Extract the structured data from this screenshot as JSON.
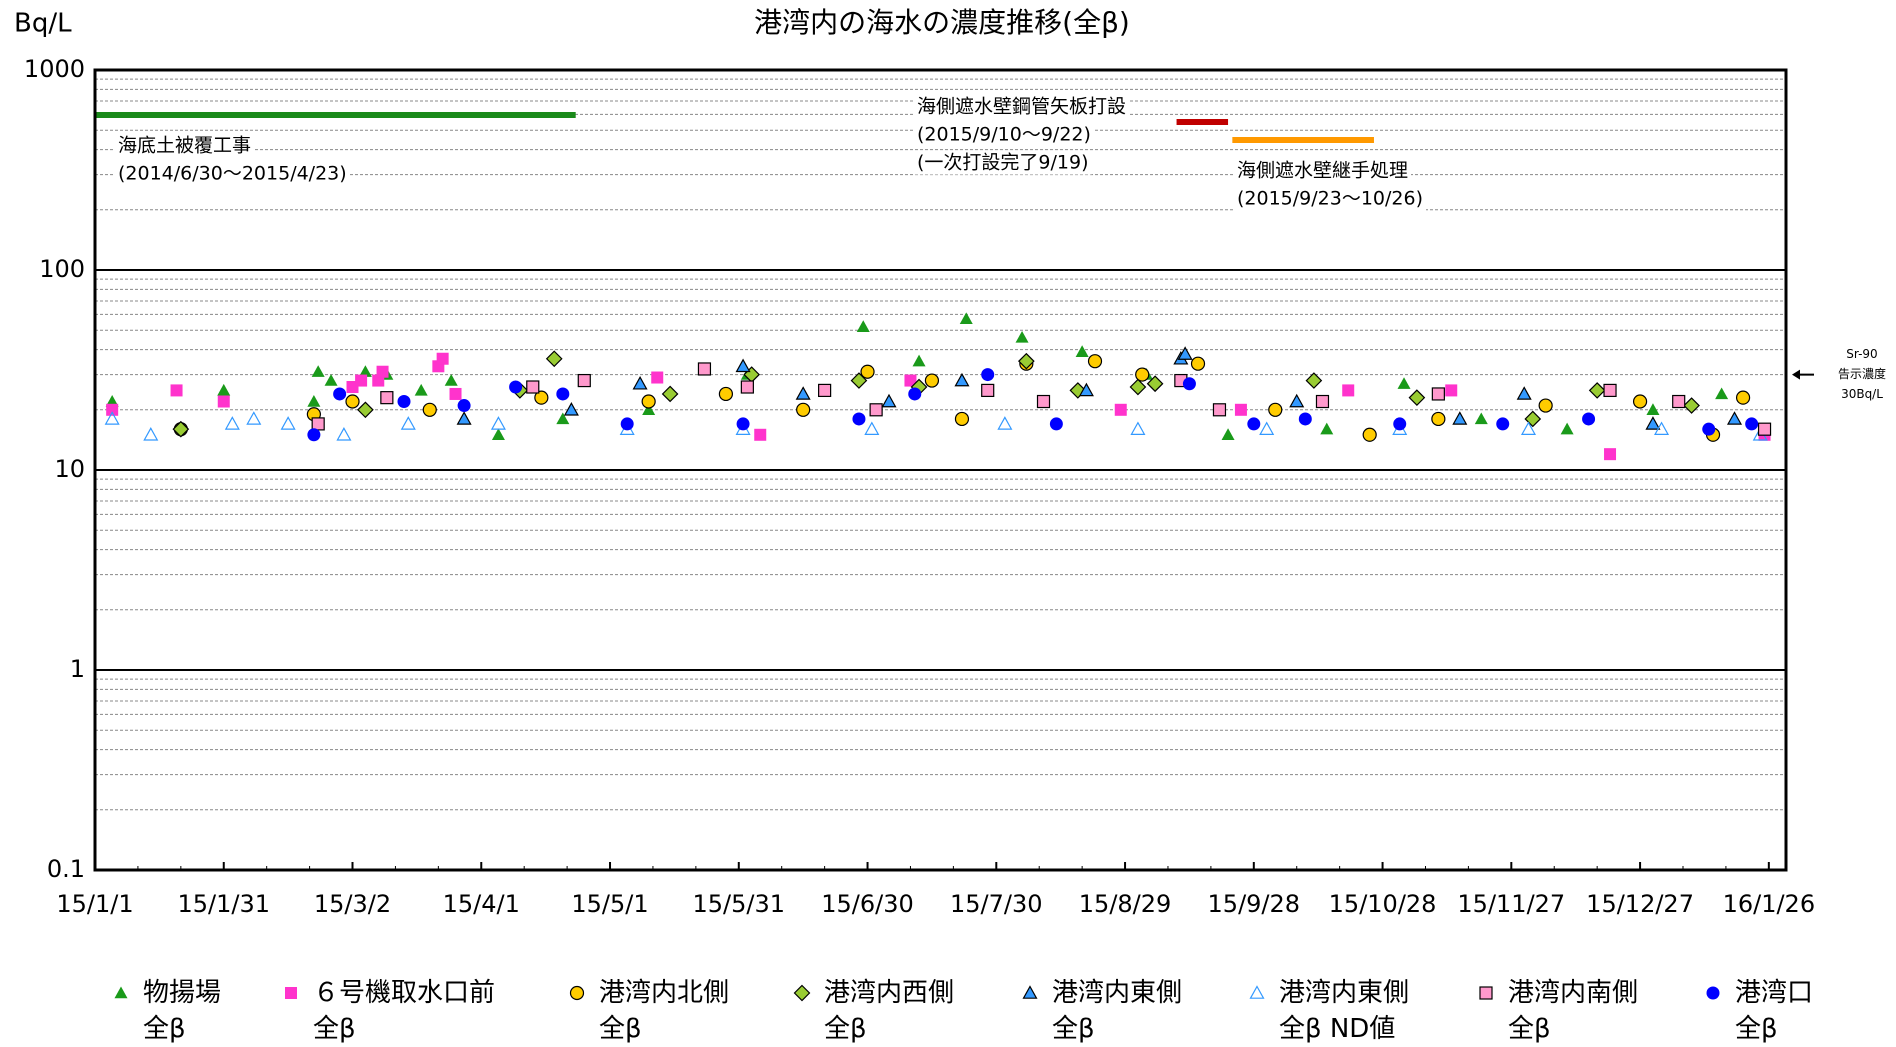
{
  "chart_data": {
    "type": "scatter",
    "title": "港湾内の海水の濃度推移(全β)",
    "y_unit": "Bq/L",
    "log_y": true,
    "grid": true,
    "xlim": [
      "15/1/1",
      "16/1/30"
    ],
    "xticks": [
      "15/1/1",
      "15/1/31",
      "15/3/2",
      "15/4/1",
      "15/5/1",
      "15/5/31",
      "15/6/30",
      "15/7/30",
      "15/8/29",
      "15/9/28",
      "15/10/28",
      "15/11/27",
      "15/12/27",
      "16/1/26"
    ],
    "ylim": [
      0.1,
      1000
    ],
    "yticks": [
      0.1,
      1,
      10,
      100,
      1000
    ],
    "reference": {
      "value": 30,
      "lines": [
        "Sr-90",
        "告示濃度",
        "30Bq/L"
      ]
    },
    "annotations": [
      {
        "lines": [
          "海底土被覆工事",
          "(2014/6/30～2015/4/23)"
        ],
        "start": "14/6/30",
        "end": "15/4/23",
        "color": "#1a8a1a"
      },
      {
        "lines": [
          "海側遮水壁鋼管矢板打設",
          "(2015/9/10～9/22)",
          "(一次打設完了9/19)"
        ],
        "start": "15/9/10",
        "end": "15/9/22",
        "color": "#c00000"
      },
      {
        "lines": [
          "海側遮水壁継手処理",
          "(2015/9/23～10/26)"
        ],
        "start": "15/9/23",
        "end": "15/10/26",
        "color": "#ff9900"
      }
    ],
    "series": [
      {
        "name": "物揚場\n全β",
        "marker": "triangle",
        "color": "#1a9a1a",
        "outline": "none",
        "x": [
          "15/1/5",
          "15/1/31",
          "15/2/21",
          "15/2/22",
          "15/2/25",
          "15/3/5",
          "15/3/10",
          "15/3/18",
          "15/3/25",
          "15/4/5",
          "15/4/20",
          "15/5/10",
          "15/6/2",
          "15/6/29",
          "15/7/12",
          "15/7/23",
          "15/8/5",
          "15/8/19",
          "15/9/3",
          "15/9/22",
          "15/10/15",
          "15/11/2",
          "15/11/20",
          "15/12/10",
          "15/12/30",
          "16/1/15"
        ],
        "values": [
          22,
          25,
          22,
          31,
          28,
          31,
          30,
          25,
          28,
          15,
          18,
          20,
          30,
          52,
          35,
          57,
          46,
          39,
          30,
          15,
          16,
          27,
          18,
          16,
          20,
          24
        ]
      },
      {
        "name": "６号機取水口前\n全β",
        "marker": "square",
        "color": "#ff33cc",
        "outline": "none",
        "x": [
          "15/1/5",
          "15/1/20",
          "15/1/31",
          "15/3/2",
          "15/3/4",
          "15/3/8",
          "15/3/9",
          "15/3/22",
          "15/3/23",
          "15/3/26",
          "15/5/12",
          "15/6/5",
          "15/6/20",
          "15/7/10",
          "15/8/28",
          "15/9/25",
          "15/10/20",
          "15/11/13",
          "15/12/20",
          "16/1/25"
        ],
        "values": [
          20,
          25,
          22,
          26,
          28,
          28,
          31,
          33,
          36,
          24,
          29,
          15,
          25,
          28,
          20,
          20,
          25,
          25,
          12,
          15
        ]
      },
      {
        "name": "港湾内北側\n全β",
        "marker": "circle",
        "color": "#ffcc00",
        "outline": "#000000",
        "x": [
          "15/1/21",
          "15/2/21",
          "15/3/2",
          "15/3/20",
          "15/4/15",
          "15/5/10",
          "15/5/28",
          "15/6/15",
          "15/6/30",
          "15/7/15",
          "15/7/22",
          "15/8/6",
          "15/8/22",
          "15/9/2",
          "15/9/15",
          "15/10/3",
          "15/10/25",
          "15/11/10",
          "15/12/5",
          "15/12/27",
          "16/1/13",
          "16/1/20"
        ],
        "values": [
          16,
          19,
          22,
          20,
          23,
          22,
          24,
          20,
          31,
          28,
          18,
          34,
          35,
          30,
          34,
          20,
          15,
          18,
          21,
          22,
          15,
          23
        ]
      },
      {
        "name": "港湾内西側\n全β",
        "marker": "diamond",
        "color": "#99cc33",
        "outline": "#000000",
        "x": [
          "15/1/21",
          "15/3/5",
          "15/4/10",
          "15/4/18",
          "15/5/15",
          "15/6/3",
          "15/6/28",
          "15/7/12",
          "15/8/6",
          "15/8/18",
          "15/9/1",
          "15/9/5",
          "15/10/12",
          "15/11/5",
          "15/12/2",
          "15/12/17",
          "16/1/8"
        ],
        "values": [
          16,
          20,
          25,
          36,
          24,
          30,
          28,
          26,
          35,
          25,
          26,
          27,
          28,
          23,
          18,
          25,
          21
        ]
      },
      {
        "name": "港湾内東側\n全β",
        "marker": "triangle",
        "color": "#3399ff",
        "outline": "#000000",
        "x": [
          "15/3/28",
          "15/4/22",
          "15/5/8",
          "15/6/1",
          "15/6/15",
          "15/7/5",
          "15/7/22",
          "15/8/20",
          "15/9/11",
          "15/9/12",
          "15/10/8",
          "15/11/15",
          "15/11/30",
          "15/12/30",
          "16/1/18"
        ],
        "values": [
          18,
          20,
          27,
          33,
          24,
          22,
          28,
          25,
          36,
          38,
          22,
          18,
          24,
          17,
          18
        ]
      },
      {
        "name": "港湾内東側\n全β ND値",
        "marker": "triangle-open",
        "color": "#3399ff",
        "outline": "#3399ff",
        "x": [
          "15/1/5",
          "15/1/14",
          "15/2/2",
          "15/2/7",
          "15/2/15",
          "15/2/28",
          "15/3/15",
          "15/4/5",
          "15/5/5",
          "15/6/1",
          "15/7/1",
          "15/8/1",
          "15/9/1",
          "15/10/1",
          "15/11/1",
          "15/12/1",
          "16/1/1",
          "16/1/24"
        ],
        "values": [
          18,
          15,
          17,
          18,
          17,
          15,
          17,
          17,
          16,
          16,
          16,
          17,
          16,
          16,
          16,
          16,
          16,
          15
        ]
      },
      {
        "name": "港湾内南側\n全β",
        "marker": "square",
        "color": "#ff99cc",
        "outline": "#000000",
        "x": [
          "15/2/22",
          "15/3/10",
          "15/4/13",
          "15/4/25",
          "15/5/23",
          "15/6/2",
          "15/6/20",
          "15/7/2",
          "15/7/28",
          "15/8/10",
          "15/9/11",
          "15/9/20",
          "15/10/14",
          "15/11/10",
          "15/12/20",
          "16/1/5",
          "16/1/25"
        ],
        "values": [
          17,
          23,
          26,
          28,
          32,
          26,
          25,
          20,
          25,
          22,
          28,
          20,
          22,
          24,
          25,
          22,
          16
        ]
      },
      {
        "name": "港湾口\n全β",
        "marker": "circle",
        "color": "#0000ff",
        "outline": "none",
        "x": [
          "15/2/21",
          "15/2/27",
          "15/3/14",
          "15/3/28",
          "15/4/9",
          "15/4/20",
          "15/5/5",
          "15/6/1",
          "15/6/28",
          "15/7/11",
          "15/7/28",
          "15/8/13",
          "15/9/13",
          "15/9/28",
          "15/10/10",
          "15/11/1",
          "15/11/25",
          "15/12/15",
          "16/1/12",
          "16/1/22"
        ],
        "values": [
          15,
          24,
          22,
          21,
          26,
          24,
          17,
          17,
          18,
          24,
          30,
          17,
          27,
          17,
          18,
          17,
          17,
          18,
          16,
          17
        ]
      }
    ]
  }
}
